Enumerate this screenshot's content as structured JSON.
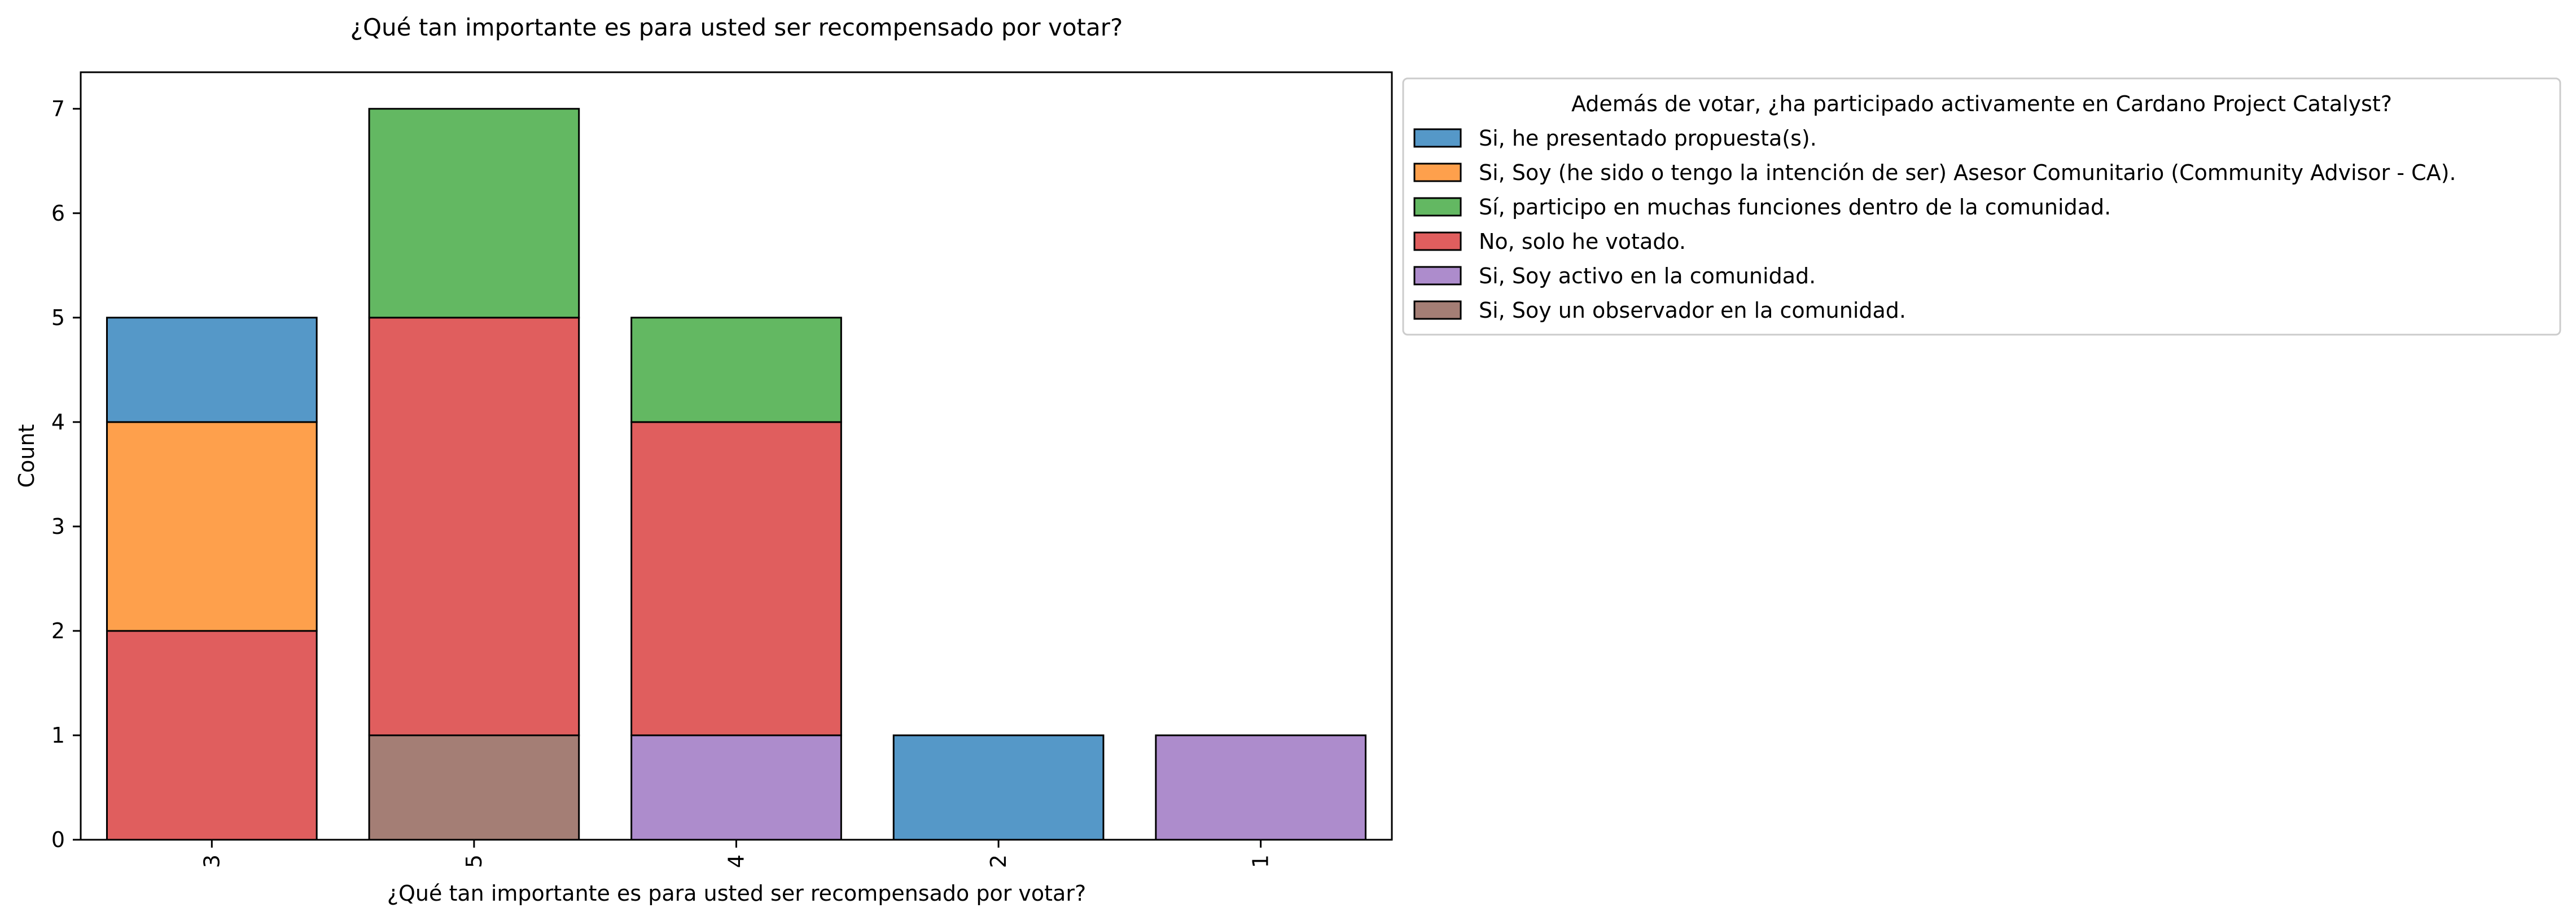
{
  "chart_data": {
    "type": "bar",
    "stacked": true,
    "title": "¿Qué tan importante es para usted ser recompensado por votar?",
    "xlabel": "¿Qué tan importante es para usted ser recompensado por votar?",
    "ylabel": "Count",
    "categories": [
      "3",
      "5",
      "4",
      "2",
      "1"
    ],
    "ylim": [
      0,
      7.35
    ],
    "yticks": [
      0,
      1,
      2,
      3,
      4,
      5,
      6,
      7
    ],
    "grid": false,
    "legend": {
      "title": "Además de votar, ¿ha participado activamente en Cardano Project Catalyst?",
      "placement": "outside-right"
    },
    "series": [
      {
        "name": "Si, Soy un observador en la comunidad.",
        "color": "#a47e75",
        "values": [
          0,
          1,
          0,
          0,
          0
        ]
      },
      {
        "name": "Si, Soy activo en la comunidad.",
        "color": "#ad8ccc",
        "values": [
          0,
          0,
          1,
          0,
          1
        ]
      },
      {
        "name": "No, solo he votado.",
        "color": "#e05e5e",
        "values": [
          2,
          4,
          3,
          0,
          0
        ]
      },
      {
        "name": "Sí, participo en muchas funciones dentro de la comunidad.",
        "color": "#63b862",
        "values": [
          0,
          2,
          1,
          0,
          0
        ]
      },
      {
        "name": "Si, Soy (he sido o tengo la intención de ser) Asesor Comunitario (Community Advisor - CA).",
        "color": "#fea04c",
        "values": [
          2,
          0,
          0,
          0,
          0
        ]
      },
      {
        "name": "Si, he presentado propuesta(s).",
        "color": "#5598c8",
        "values": [
          1,
          0,
          0,
          1,
          0
        ]
      }
    ],
    "legend_order": [
      5,
      4,
      3,
      2,
      1,
      0
    ]
  }
}
